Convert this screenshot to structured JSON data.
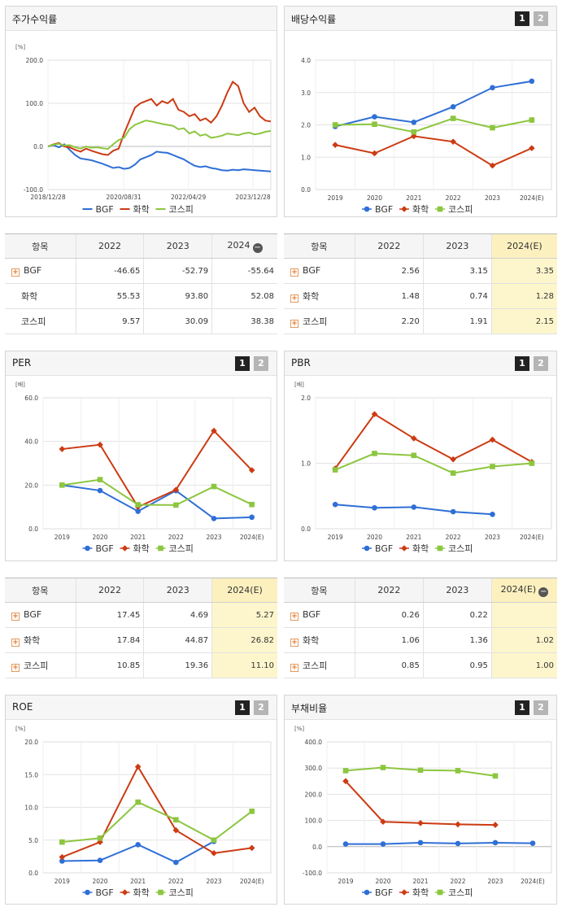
{
  "legend": [
    "BGF",
    "화학",
    "코스피"
  ],
  "colors": {
    "BGF": "#2f6fd6",
    "화학": "#cc3b13",
    "코스피": "#8cc63f"
  },
  "pager": [
    "1",
    "2"
  ],
  "tables": {
    "stock_return": {
      "headers": [
        "항목",
        "2022",
        "2023",
        "2024"
      ],
      "rows": [
        {
          "name": "BGF",
          "values": [
            "-46.65",
            "-52.79",
            "-55.64"
          ]
        },
        {
          "name": "화학",
          "values": [
            "55.53",
            "93.80",
            "52.08"
          ]
        },
        {
          "name": "코스피",
          "values": [
            "9.57",
            "30.09",
            "38.38"
          ]
        }
      ]
    },
    "dividend": {
      "headers": [
        "항목",
        "2022",
        "2023",
        "2024(E)"
      ],
      "rows": [
        {
          "name": "BGF",
          "values": [
            "2.56",
            "3.15",
            "3.35"
          ]
        },
        {
          "name": "화학",
          "values": [
            "1.48",
            "0.74",
            "1.28"
          ]
        },
        {
          "name": "코스피",
          "values": [
            "2.20",
            "1.91",
            "2.15"
          ]
        }
      ]
    },
    "per": {
      "headers": [
        "항목",
        "2022",
        "2023",
        "2024(E)"
      ],
      "rows": [
        {
          "name": "BGF",
          "values": [
            "17.45",
            "4.69",
            "5.27"
          ]
        },
        {
          "name": "화학",
          "values": [
            "17.84",
            "44.87",
            "26.82"
          ]
        },
        {
          "name": "코스피",
          "values": [
            "10.85",
            "19.36",
            "11.10"
          ]
        }
      ]
    },
    "pbr": {
      "headers": [
        "항목",
        "2022",
        "2023",
        "2024(E)"
      ],
      "rows": [
        {
          "name": "BGF",
          "values": [
            "0.26",
            "0.22",
            ""
          ]
        },
        {
          "name": "화학",
          "values": [
            "1.06",
            "1.36",
            "1.02"
          ]
        },
        {
          "name": "코스피",
          "values": [
            "0.85",
            "0.95",
            "1.00"
          ]
        }
      ]
    }
  },
  "chart_data": [
    {
      "id": "stock",
      "type": "line",
      "title": "주가수익률",
      "unit": "[%]",
      "x_ticks": [
        "2018/12/28",
        "2020/08/31",
        "2022/04/29",
        "2023/12/28"
      ],
      "y_ticks": [
        "200.0",
        "100.0",
        "0.0",
        "-100.0"
      ],
      "ylim": [
        -100,
        200
      ],
      "series": [
        {
          "name": "BGF",
          "values": [
            0,
            3,
            -2,
            5,
            -8,
            -20,
            -28,
            -30,
            -32,
            -36,
            -40,
            -45,
            -50,
            -48,
            -52,
            -50,
            -42,
            -30,
            -25,
            -20,
            -12,
            -14,
            -15,
            -20,
            -25,
            -30,
            -38,
            -45,
            -48,
            -46,
            -50,
            -52,
            -55,
            -56,
            -54,
            -55,
            -53,
            -54,
            -55,
            -56,
            -57,
            -58
          ]
        },
        {
          "name": "화학",
          "values": [
            0,
            5,
            8,
            0,
            -2,
            -8,
            -12,
            -5,
            -10,
            -14,
            -18,
            -20,
            -10,
            -5,
            30,
            60,
            90,
            100,
            105,
            110,
            95,
            105,
            100,
            110,
            85,
            80,
            70,
            75,
            60,
            65,
            55,
            70,
            95,
            125,
            150,
            140,
            100,
            80,
            90,
            70,
            60,
            58
          ]
        },
        {
          "name": "코스피",
          "values": [
            0,
            4,
            6,
            2,
            3,
            -2,
            -5,
            0,
            -3,
            -2,
            -4,
            -6,
            5,
            15,
            20,
            40,
            50,
            55,
            60,
            58,
            55,
            52,
            50,
            48,
            40,
            42,
            30,
            35,
            25,
            28,
            20,
            22,
            25,
            30,
            28,
            26,
            30,
            32,
            28,
            30,
            34,
            36
          ]
        }
      ]
    },
    {
      "id": "dividend",
      "type": "line",
      "title": "배당수익률",
      "categories": [
        "2019",
        "2020",
        "2021",
        "2022",
        "2023",
        "2024(E)"
      ],
      "y_ticks": [
        "4.0",
        "3.0",
        "2.0",
        "1.0",
        "0.0"
      ],
      "ylim": [
        0,
        4
      ],
      "series": [
        {
          "name": "BGF",
          "values": [
            1.95,
            2.25,
            2.08,
            2.56,
            3.15,
            3.35
          ]
        },
        {
          "name": "화학",
          "values": [
            1.38,
            1.12,
            1.65,
            1.48,
            0.74,
            1.28
          ]
        },
        {
          "name": "코스피",
          "values": [
            2.0,
            2.02,
            1.78,
            2.2,
            1.91,
            2.15
          ]
        }
      ]
    },
    {
      "id": "per",
      "type": "line",
      "title": "PER",
      "unit": "[배]",
      "categories": [
        "2019",
        "2020",
        "2021",
        "2022",
        "2023",
        "2024(E)"
      ],
      "y_ticks": [
        "60.0",
        "40.0",
        "20.0",
        "0.0"
      ],
      "ylim": [
        0,
        60
      ],
      "series": [
        {
          "name": "BGF",
          "values": [
            20.0,
            17.5,
            8.0,
            17.45,
            4.69,
            5.27
          ]
        },
        {
          "name": "화학",
          "values": [
            36.5,
            38.5,
            10.0,
            17.84,
            44.87,
            26.82
          ]
        },
        {
          "name": "코스피",
          "values": [
            20.0,
            22.5,
            11.0,
            10.85,
            19.36,
            11.1
          ]
        }
      ]
    },
    {
      "id": "pbr",
      "type": "line",
      "title": "PBR",
      "unit": "[배]",
      "categories": [
        "2019",
        "2020",
        "2021",
        "2022",
        "2023",
        "2024(E)"
      ],
      "y_ticks": [
        "2.0",
        "1.0",
        "0.0"
      ],
      "ylim": [
        0,
        2
      ],
      "series": [
        {
          "name": "BGF",
          "values": [
            0.37,
            0.32,
            0.33,
            0.26,
            0.22,
            null
          ]
        },
        {
          "name": "화학",
          "values": [
            0.92,
            1.75,
            1.38,
            1.06,
            1.36,
            1.02
          ]
        },
        {
          "name": "코스피",
          "values": [
            0.9,
            1.15,
            1.12,
            0.85,
            0.95,
            1.0
          ]
        }
      ]
    },
    {
      "id": "roe",
      "type": "line",
      "title": "ROE",
      "unit": "[%]",
      "categories": [
        "2019",
        "2020",
        "2021",
        "2022",
        "2023",
        "2024(E)"
      ],
      "y_ticks": [
        "20.0",
        "15.0",
        "10.0",
        "5.0",
        "0.0"
      ],
      "ylim": [
        0,
        20
      ],
      "series": [
        {
          "name": "BGF",
          "values": [
            1.8,
            1.9,
            4.3,
            1.6,
            4.8,
            null
          ]
        },
        {
          "name": "화학",
          "values": [
            2.4,
            4.7,
            16.2,
            6.5,
            3.0,
            3.8
          ]
        },
        {
          "name": "코스피",
          "values": [
            4.7,
            5.3,
            10.8,
            8.1,
            5.0,
            9.4
          ]
        }
      ]
    },
    {
      "id": "debt",
      "type": "line",
      "title": "부채비율",
      "unit": "[%]",
      "categories": [
        "2019",
        "2020",
        "2021",
        "2022",
        "2023",
        "2024(E)"
      ],
      "y_ticks": [
        "400.0",
        "300.0",
        "200.0",
        "100.0",
        "0.0",
        "-100.0"
      ],
      "ylim": [
        -100,
        400
      ],
      "series": [
        {
          "name": "BGF",
          "values": [
            10,
            10,
            15,
            12,
            15,
            13
          ]
        },
        {
          "name": "화학",
          "values": [
            250,
            95,
            90,
            85,
            83,
            null
          ]
        },
        {
          "name": "코스피",
          "values": [
            290,
            302,
            292,
            290,
            270,
            null
          ]
        }
      ]
    }
  ]
}
